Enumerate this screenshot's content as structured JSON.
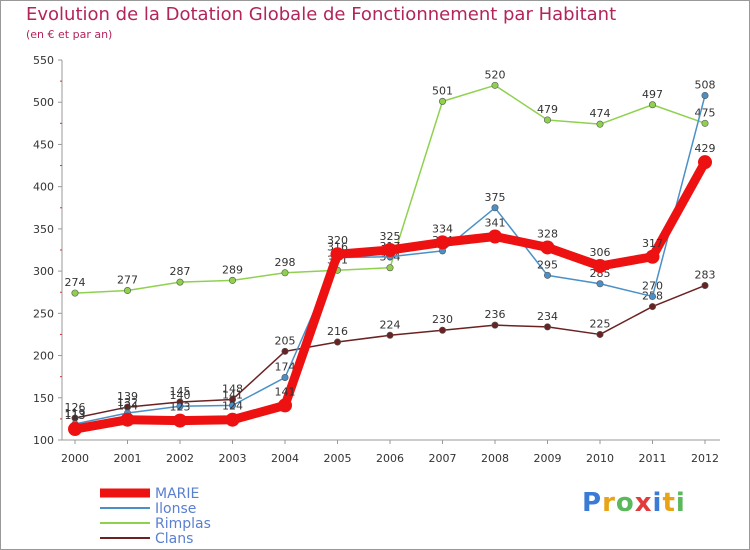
{
  "title": "Evolution de la Dotation Globale de Fonctionnement par Habitant",
  "subtitle": "(en € et par an)",
  "logo": {
    "text": "Proxiti",
    "letter_colors": [
      "#3a7bd5",
      "#e8a317",
      "#5cb85c",
      "#e23b3b",
      "#3a7bd5",
      "#e8a317",
      "#5cb85c"
    ]
  },
  "chart_data": {
    "type": "line",
    "title": "Evolution de la Dotation Globale de Fonctionnement par Habitant",
    "subtitle": "(en € et par an)",
    "xlabel": "",
    "ylabel": "",
    "categories": [
      "2000",
      "2001",
      "2002",
      "2003",
      "2004",
      "2005",
      "2006",
      "2007",
      "2008",
      "2009",
      "2010",
      "2011",
      "2012"
    ],
    "ylim": [
      100,
      550
    ],
    "yticks": [
      100,
      150,
      200,
      250,
      300,
      350,
      400,
      450,
      500,
      550
    ],
    "grid": false,
    "legend_position": "bottom-left",
    "series": [
      {
        "name": "Clans",
        "color": "#6b2222",
        "values": [
          126,
          139,
          145,
          148,
          205,
          216,
          224,
          230,
          236,
          234,
          225,
          258,
          283
        ],
        "labels": [
          "126",
          "139",
          "145",
          "148",
          "205",
          "216",
          "224",
          "230",
          "236",
          "234",
          "225",
          "258",
          "283"
        ]
      },
      {
        "name": "Rimplas",
        "color": "#8fd14f",
        "values": [
          274,
          277,
          287,
          289,
          298,
          301,
          304,
          501,
          520,
          479,
          474,
          497,
          475
        ],
        "labels": [
          "274",
          "277",
          "287",
          "289",
          "298",
          "301",
          "304",
          "501",
          "520",
          "479",
          "474",
          "497",
          "475"
        ]
      },
      {
        "name": "Ilonse",
        "color": "#4a90c8",
        "values": [
          119,
          132,
          140,
          141,
          174,
          316,
          317,
          324,
          375,
          295,
          285,
          270,
          508
        ],
        "labels": [
          "119",
          "132",
          "140",
          "141",
          "174",
          "316",
          "317",
          "324",
          "375",
          "295",
          "285",
          "270",
          "508"
        ]
      },
      {
        "name": "MARIE",
        "color": "#ee1111",
        "values": [
          113,
          124,
          123,
          124,
          141,
          320,
          325,
          334,
          341,
          328,
          306,
          317,
          429
        ],
        "labels": [
          "113",
          "124",
          "123",
          "124",
          "141",
          "320",
          "325",
          "334",
          "341",
          "328",
          "306",
          "317",
          "429"
        ]
      }
    ],
    "legend": [
      "MARIE",
      "Ilonse",
      "Rimplas",
      "Clans"
    ]
  }
}
